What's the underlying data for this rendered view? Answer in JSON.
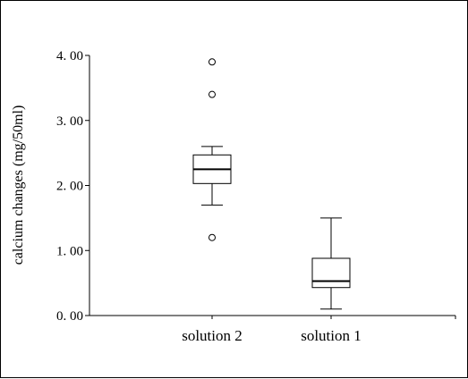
{
  "chart_data": {
    "type": "boxplot",
    "title": "",
    "xlabel": "",
    "ylabel": "calcium changes (mg/50ml)",
    "ylim": [
      0,
      4
    ],
    "y_ticks": [
      "0. 00",
      "1. 00",
      "2. 00",
      "3. 00",
      "4. 00"
    ],
    "y_tick_values": [
      0,
      1,
      2,
      3,
      4
    ],
    "grid": false,
    "categories": [
      "solution 2",
      "solution 1"
    ],
    "boxes": [
      {
        "category": "solution 2",
        "whisker_low": 1.7,
        "q1": 2.03,
        "median": 2.25,
        "q3": 2.47,
        "whisker_high": 2.6,
        "outliers": [
          1.2,
          3.4,
          3.9
        ]
      },
      {
        "category": "solution 1",
        "whisker_low": 0.1,
        "q1": 0.43,
        "median": 0.53,
        "q3": 0.88,
        "whisker_high": 1.5,
        "outliers": []
      }
    ]
  }
}
